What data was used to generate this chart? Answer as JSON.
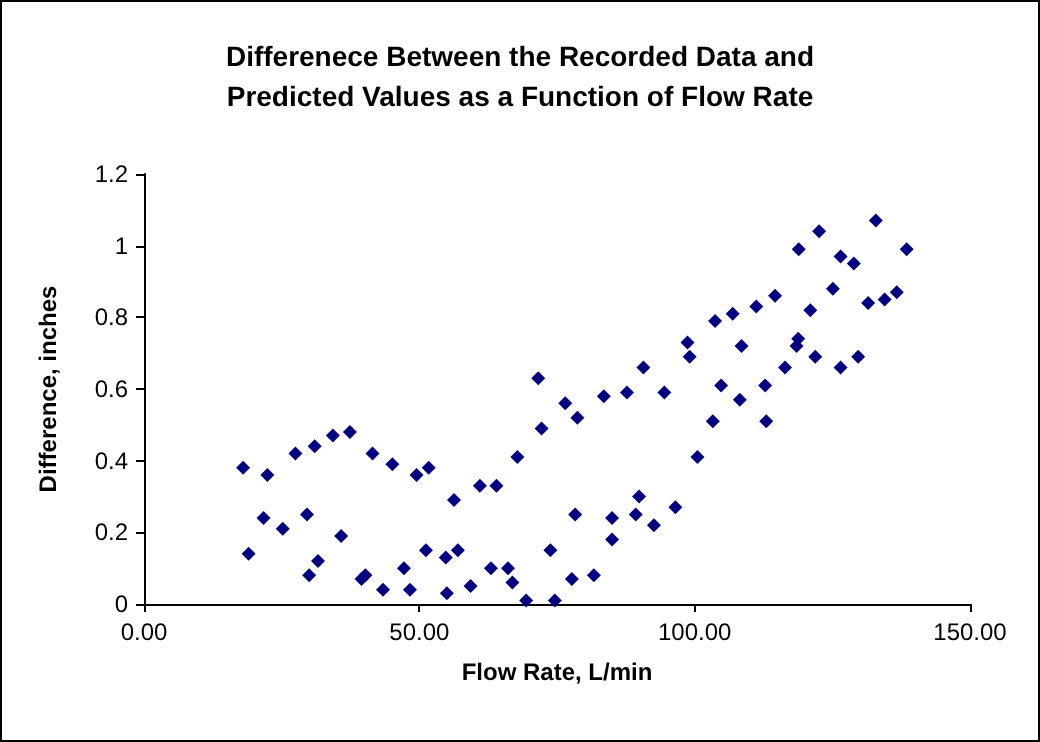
{
  "chart_data": {
    "type": "scatter",
    "title": "Differenece Between the Recorded Data and\nPredicted Values as a Function of Flow Rate",
    "xlabel": "Flow Rate, L/min",
    "ylabel": "Difference, inches",
    "xlim": [
      0,
      150
    ],
    "xticks": [
      {
        "value": 0,
        "label": "0.00"
      },
      {
        "value": 50,
        "label": "50.00"
      },
      {
        "value": 100,
        "label": "100.00"
      },
      {
        "value": 150,
        "label": "150.00"
      }
    ],
    "ylim": [
      0,
      1.2
    ],
    "yticks": [
      0,
      0.2,
      0.4,
      0.6,
      0.8,
      1,
      1.2
    ],
    "marker": "diamond",
    "series": [
      {
        "color": "#000080",
        "x": [
          18.0,
          19.0,
          21.7,
          22.4,
          25.2,
          27.5,
          29.6,
          30.0,
          31.0,
          31.6,
          34.3,
          35.8,
          37.4,
          39.5,
          40.2,
          41.5,
          43.4,
          45.1,
          47.2,
          48.3,
          49.5,
          51.2,
          51.7,
          54.8,
          55.0,
          56.3,
          57.0,
          59.3,
          61.0,
          63.0,
          64.0,
          66.1,
          66.9,
          67.8,
          69.4,
          71.6,
          72.2,
          73.8,
          74.6,
          76.5,
          77.7,
          78.3,
          78.7,
          81.7,
          83.5,
          85.0,
          85.0,
          87.7,
          89.3,
          89.9,
          90.7,
          92.6,
          94.5,
          96.5,
          98.7,
          99.1,
          100.5,
          103.3,
          103.7,
          104.8,
          106.9,
          108.2,
          108.5,
          111.2,
          112.8,
          113.0,
          114.6,
          116.4,
          118.5,
          118.8,
          118.9,
          121.0,
          121.9,
          122.6,
          125.1,
          126.5,
          126.5,
          128.9,
          129.7,
          131.5,
          132.9,
          134.5,
          136.7,
          138.5
        ],
        "values": [
          0.38,
          0.14,
          0.24,
          0.36,
          0.21,
          0.42,
          0.25,
          0.08,
          0.44,
          0.12,
          0.47,
          0.19,
          0.48,
          0.07,
          0.08,
          0.42,
          0.04,
          0.39,
          0.1,
          0.04,
          0.36,
          0.15,
          0.38,
          0.13,
          0.03,
          0.29,
          0.15,
          0.05,
          0.33,
          0.1,
          0.33,
          0.1,
          0.06,
          0.41,
          0.01,
          0.63,
          0.49,
          0.15,
          0.01,
          0.56,
          0.07,
          0.25,
          0.52,
          0.08,
          0.58,
          0.18,
          0.24,
          0.59,
          0.25,
          0.3,
          0.66,
          0.22,
          0.59,
          0.27,
          0.73,
          0.69,
          0.41,
          0.51,
          0.79,
          0.61,
          0.81,
          0.57,
          0.72,
          0.83,
          0.61,
          0.51,
          0.86,
          0.66,
          0.72,
          0.74,
          0.99,
          0.82,
          0.69,
          1.04,
          0.88,
          0.97,
          0.66,
          0.95,
          0.69,
          0.84,
          1.07,
          0.85,
          0.87,
          0.99
        ]
      }
    ]
  }
}
